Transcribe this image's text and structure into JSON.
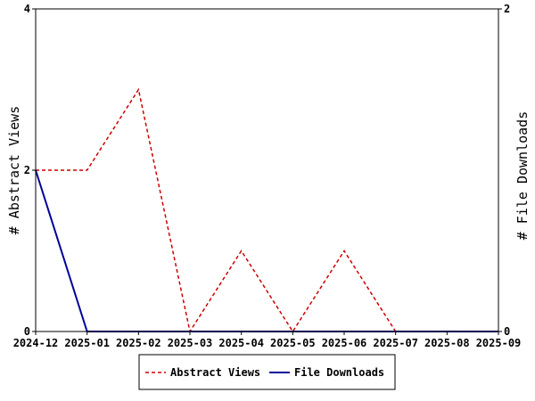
{
  "chart_data": {
    "type": "line",
    "x": [
      "2024-12",
      "2025-01",
      "2025-02",
      "2025-03",
      "2025-04",
      "2025-05",
      "2025-06",
      "2025-07",
      "2025-08",
      "2025-09"
    ],
    "x_ticks": [
      "2024-12",
      "2025-01",
      "2025-02",
      "2025-03",
      "2025-04",
      "2025-05",
      "2025-06",
      "2025-07",
      "2025-08",
      "2025-09"
    ],
    "ylabel": "# Abstract Views",
    "ylabel_right": "# File Downloads",
    "ylim": [
      0,
      4
    ],
    "ylim_right": [
      0,
      2
    ],
    "y_ticks": [
      "0",
      "2",
      "4"
    ],
    "y_ticks_right": [
      "0",
      "2"
    ],
    "grid": false,
    "legend_position": "bottom-center",
    "series": [
      {
        "name": "Abstract Views",
        "axis": "left",
        "color": "#cc0000",
        "style": "dashed",
        "values": [
          [
            "2024-12",
            2
          ],
          [
            "2025-01",
            2
          ],
          [
            "2025-02",
            3
          ],
          [
            "2025-03",
            0
          ],
          [
            "2025-04",
            1
          ],
          [
            "2025-05",
            0
          ],
          [
            "2025-06",
            1
          ],
          [
            "2025-07",
            0
          ],
          [
            "2025-08",
            0
          ],
          [
            "2025-09",
            0
          ]
        ]
      },
      {
        "name": "File Downloads",
        "axis": "right",
        "color": "#000099",
        "style": "solid",
        "values": [
          [
            "2024-12",
            1
          ],
          [
            "2025-01",
            0
          ],
          [
            "2025-02",
            0
          ],
          [
            "2025-03",
            0
          ],
          [
            "2025-04",
            0
          ],
          [
            "2025-05",
            0
          ],
          [
            "2025-06",
            0
          ],
          [
            "2025-07",
            0
          ],
          [
            "2025-08",
            0
          ],
          [
            "2025-09",
            0
          ]
        ]
      }
    ]
  }
}
